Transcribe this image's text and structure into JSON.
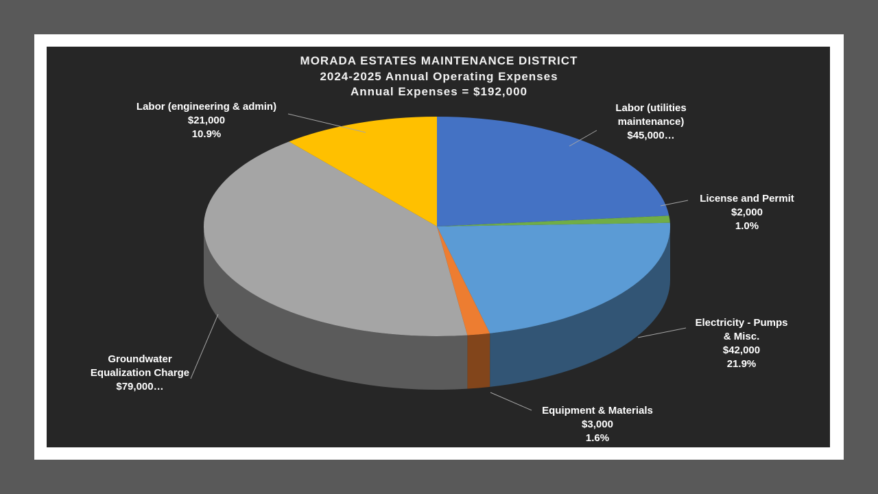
{
  "chart_data": {
    "type": "pie",
    "title": "MORADA ESTATES MAINTENANCE DISTRICT",
    "subtitle": "2024-2025 Annual Operating Expenses",
    "annotation": "Annual Expenses = $192,000",
    "categories": [
      "Labor (utilities\nmaintenance)",
      "License and Permit",
      "Electricity - Pumps\n& Misc.",
      "Equipment & Materials",
      "Groundwater\nEqualization Charge",
      "Labor (engineering & admin)"
    ],
    "values": [
      45000,
      2000,
      42000,
      3000,
      79000,
      21000
    ],
    "value_labels": [
      "$45,000…",
      "$2,000",
      "$42,000",
      "$3,000",
      "$79,000…",
      "$21,000"
    ],
    "percent_labels": [
      null,
      "1.0%",
      "21.9%",
      "1.6%",
      null,
      "10.9%"
    ],
    "colors": [
      "#4472c4",
      "#70ad47",
      "#5b9bd5",
      "#ed7d31",
      "#a5a5a5",
      "#ffc000"
    ]
  }
}
